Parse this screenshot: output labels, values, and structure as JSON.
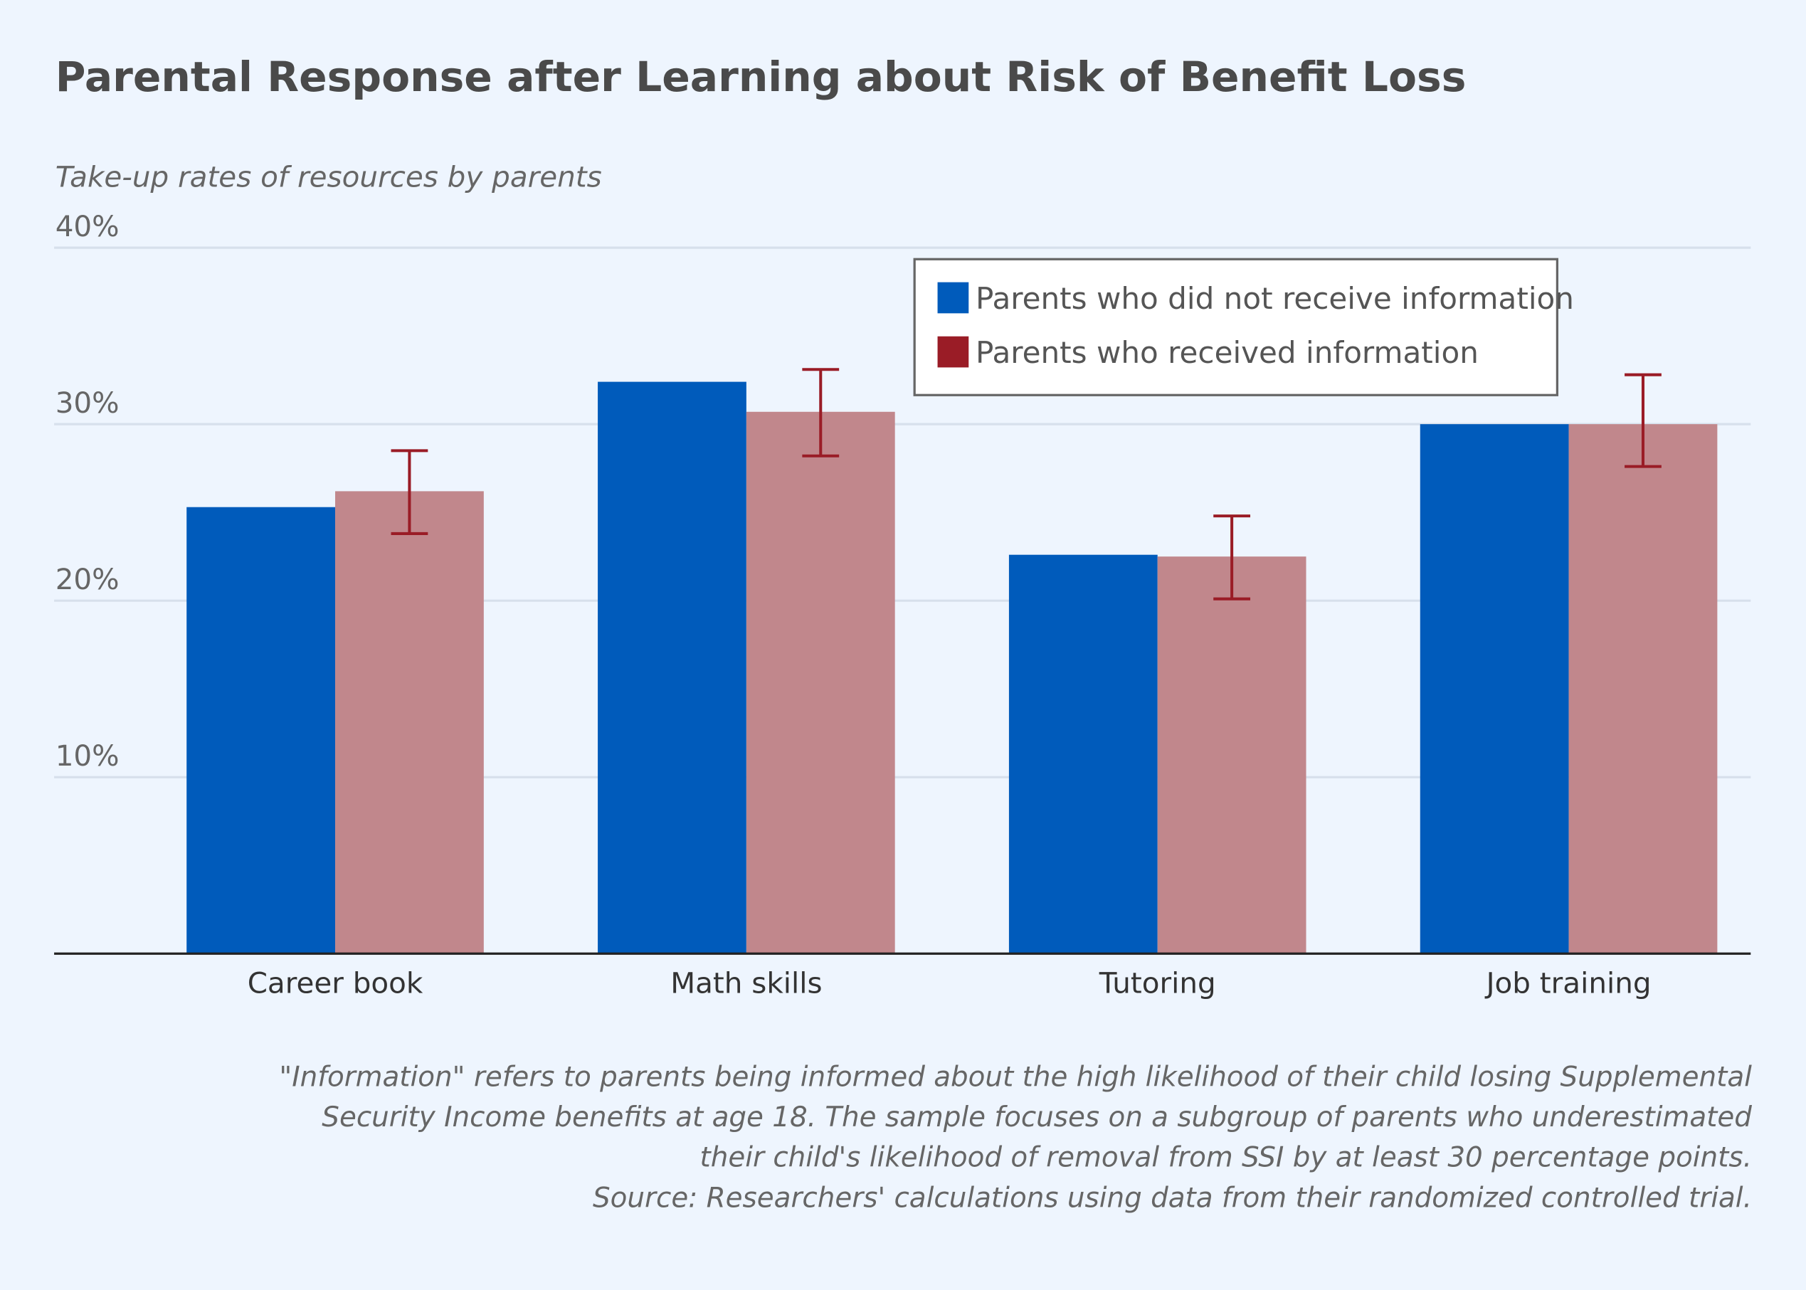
{
  "chart_data": {
    "type": "bar",
    "title": "Parental Response after Learning about Risk of Benefit Loss",
    "subtitle": "Take-up rates of resources by parents",
    "categories": [
      "Career book",
      "Math skills",
      "Tutoring",
      "Job training"
    ],
    "ylim": [
      0,
      40
    ],
    "yticks": [
      10,
      20,
      30,
      40
    ],
    "ytick_labels": [
      "10%",
      "20%",
      "30%",
      "40%"
    ],
    "grid": true,
    "legend_placement": "top-right",
    "series": [
      {
        "name": "Parents who did not receive information",
        "color": "#005bbb",
        "values": [
          25.3,
          32.4,
          22.6,
          30.0
        ]
      },
      {
        "name": "Parents who received information",
        "color": "#c1878c",
        "legend_color": "#9a1c26",
        "values": [
          26.2,
          30.7,
          22.5,
          30.0
        ],
        "error_low": [
          23.8,
          28.2,
          20.1,
          27.6
        ],
        "error_high": [
          28.5,
          33.1,
          24.8,
          32.8
        ],
        "error_color": "#9a1c26"
      }
    ],
    "notes": [
      "\"Information\" refers to parents being informed about the high likelihood of their child losing Supplemental",
      "Security Income benefits at age 18. The sample focuses on a subgroup of parents who underestimated",
      "their child's likelihood of removal from SSI by at least 30 percentage points.",
      "Source: Researchers' calculations using data from their randomized controlled trial."
    ]
  }
}
